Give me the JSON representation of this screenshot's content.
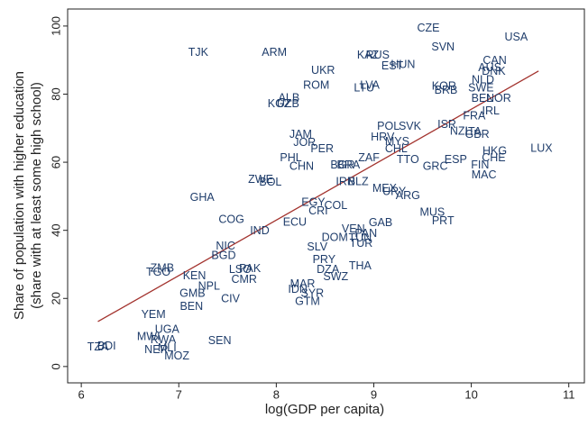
{
  "chart_data": {
    "type": "scatter",
    "x_label": "log(GDP per capita)",
    "y_label": [
      "Share of population with higher education",
      "(share with at least some high school)"
    ],
    "xlim": [
      5.86,
      11.16
    ],
    "ylim": [
      -4.8,
      105
    ],
    "xticks": [
      6,
      7,
      8,
      9,
      10,
      11
    ],
    "yticks": [
      0,
      20,
      40,
      60,
      80,
      100
    ],
    "grid": false,
    "color": "#1f3d6b",
    "labels": [
      "CZE",
      "USA",
      "SVN",
      "TJK",
      "ARM",
      "KAZ",
      "RUS",
      "CAN",
      "HUN",
      "EST",
      "AUS",
      "DNK",
      "UKR",
      "NLD",
      "ROM",
      "LVA",
      "LTU",
      "KOR",
      "BRB",
      "SWE",
      "NOR",
      "BEL",
      "ALB",
      "KGZ",
      "UZB",
      "IRL",
      "FRA",
      "ISR",
      "POL",
      "SVK",
      "NZL",
      "ITA",
      "GBR",
      "JAM",
      "HRV",
      "MYS",
      "JOR",
      "CHL",
      "PER",
      "HKG",
      "LUX",
      "CHE",
      "PHL",
      "ZAF",
      "TTO",
      "ESP",
      "CHN",
      "BGR",
      "BRA",
      "GRC",
      "FIN",
      "MAC",
      "ZWE",
      "BOL",
      "IRN",
      "BLZ",
      "MEX",
      "URY",
      "ARG",
      "GHA",
      "EGY",
      "COL",
      "CRI",
      "MUS",
      "GAB",
      "COG",
      "PRT",
      "ECU",
      "IND",
      "VEN",
      "PAN",
      "DOM",
      "TUN",
      "TUR",
      "NIC",
      "SLV",
      "BGD",
      "PRY",
      "THA",
      "ZMB",
      "TGO",
      "LSO",
      "PAK",
      "DZA",
      "KEN",
      "SWZ",
      "CMR",
      "NPL",
      "MAR",
      "IDN",
      "SYR",
      "GMB",
      "CIV",
      "GTM",
      "BEN",
      "YEM",
      "UGA",
      "MWI",
      "RWA",
      "SEN",
      "NER",
      "MLI",
      "MOZ",
      "TZA",
      "BDI"
    ],
    "x": [
      9.56,
      10.46,
      9.71,
      7.2,
      7.98,
      8.94,
      9.04,
      10.24,
      9.3,
      9.19,
      10.19,
      10.23,
      8.48,
      10.12,
      8.41,
      8.96,
      8.9,
      9.72,
      9.74,
      10.1,
      10.28,
      10.11,
      8.13,
      8.03,
      8.12,
      10.2,
      10.03,
      9.75,
      9.15,
      9.37,
      9.89,
      10.02,
      10.06,
      8.25,
      9.09,
      9.24,
      8.29,
      9.23,
      8.47,
      10.24,
      10.72,
      10.23,
      8.15,
      8.95,
      9.35,
      9.84,
      8.26,
      8.68,
      8.74,
      9.63,
      10.09,
      10.13,
      7.84,
      7.94,
      8.71,
      8.84,
      9.11,
      9.21,
      9.35,
      7.24,
      8.38,
      8.61,
      8.43,
      9.6,
      9.07,
      7.54,
      9.71,
      8.19,
      7.83,
      8.79,
      8.92,
      8.6,
      8.86,
      8.87,
      7.48,
      8.42,
      7.46,
      8.49,
      8.86,
      6.83,
      6.79,
      7.63,
      7.73,
      8.53,
      7.16,
      8.61,
      7.67,
      7.31,
      8.27,
      8.22,
      8.37,
      7.14,
      7.53,
      8.32,
      7.13,
      6.74,
      6.88,
      6.69,
      6.84,
      7.42,
      6.77,
      6.88,
      6.98,
      6.17,
      6.26
    ],
    "values": [
      99.2,
      96.6,
      93.7,
      92.1,
      92.1,
      91.3,
      91.3,
      89.7,
      88.6,
      88.1,
      87.6,
      86.5,
      86.8,
      84.1,
      82.5,
      82.5,
      81.7,
      82.2,
      81.0,
      81.7,
      78.6,
      78.6,
      78.8,
      77.0,
      77.0,
      74.9,
      73.5,
      70.9,
      70.4,
      70.4,
      69.0,
      68.8,
      68.0,
      68.0,
      67.2,
      65.9,
      65.6,
      63.8,
      63.8,
      63.2,
      64.0,
      61.1,
      61.1,
      61.1,
      60.6,
      60.6,
      58.7,
      59.0,
      59.0,
      58.7,
      59.0,
      56.1,
      54.8,
      54.0,
      54.2,
      54.2,
      52.1,
      51.3,
      50.0,
      49.5,
      48.1,
      47.1,
      45.5,
      45.2,
      42.1,
      43.1,
      42.6,
      42.3,
      39.7,
      40.2,
      38.9,
      37.8,
      37.6,
      36.0,
      35.2,
      34.9,
      32.5,
      31.2,
      29.4,
      28.8,
      27.5,
      28.3,
      28.6,
      28.3,
      26.5,
      26.2,
      25.4,
      23.5,
      24.1,
      22.5,
      21.4,
      21.4,
      19.8,
      19.0,
      17.5,
      15.1,
      10.8,
      8.7,
      7.7,
      7.4,
      4.8,
      5.3,
      2.9,
      5.6,
      5.8
    ],
    "fit": {
      "color": "#a3332e",
      "x": [
        6.17,
        10.69
      ],
      "values": [
        13.2,
        86.8
      ]
    }
  }
}
